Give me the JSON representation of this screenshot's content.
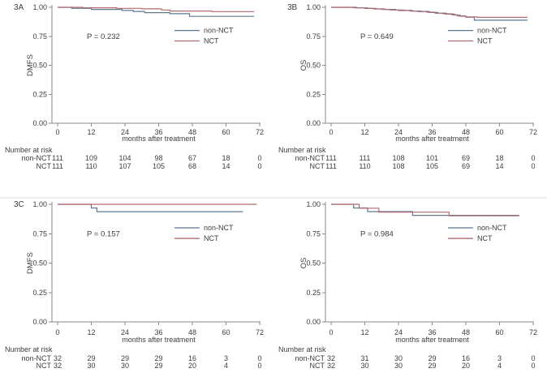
{
  "figure": {
    "background": "#ffffff",
    "separator_color": "#e3d9d9"
  },
  "shared": {
    "xlabel": "months after treatment",
    "risk_title": "Number at risk",
    "legend": [
      "non-NCT",
      "NCT"
    ],
    "colors": {
      "non_nct": "#5e7890",
      "nct": "#b36a6e",
      "axis": "#8a8a8a",
      "text": "#3c3c3c"
    }
  },
  "chart_data": [
    {
      "type": "line",
      "step": true,
      "label": "3A",
      "ylabel": "DMFS",
      "pvalue": "P = 0.232",
      "xlabel": "months after treatment",
      "xlim": [
        0,
        72
      ],
      "ylim": [
        0,
        1
      ],
      "xticks": [
        0,
        12,
        24,
        36,
        48,
        60,
        72
      ],
      "yticks": [
        "0.00",
        "0.25",
        "0.50",
        "0.75",
        "1.00"
      ],
      "legend_position": "right-upper",
      "grid": false,
      "series": [
        {
          "name": "non-NCT",
          "color": "#5e7890",
          "points": [
            [
              0,
              1.0
            ],
            [
              5,
              0.991
            ],
            [
              12,
              0.982
            ],
            [
              23,
              0.973
            ],
            [
              27,
              0.964
            ],
            [
              31,
              0.954
            ],
            [
              40,
              0.945
            ],
            [
              47,
              0.922
            ],
            [
              70,
              0.922
            ]
          ]
        },
        {
          "name": "NCT",
          "color": "#b36a6e",
          "points": [
            [
              0,
              1.0
            ],
            [
              9,
              0.996
            ],
            [
              21,
              0.991
            ],
            [
              30,
              0.987
            ],
            [
              37,
              0.977
            ],
            [
              40,
              0.968
            ],
            [
              55,
              0.963
            ],
            [
              70,
              0.963
            ]
          ]
        }
      ],
      "number_at_risk": [
        {
          "name": "non-NCT",
          "values": [
            111,
            109,
            104,
            98,
            67,
            18,
            0
          ]
        },
        {
          "name": "NCT",
          "values": [
            111,
            110,
            107,
            105,
            68,
            14,
            0
          ]
        }
      ]
    },
    {
      "type": "line",
      "step": true,
      "label": "3B",
      "ylabel": "OS",
      "pvalue": "P = 0.649",
      "xlabel": "months after treatment",
      "xlim": [
        0,
        72
      ],
      "ylim": [
        0,
        1
      ],
      "xticks": [
        0,
        12,
        24,
        36,
        48,
        60,
        72
      ],
      "yticks": [
        "0.00",
        "0.25",
        "0.50",
        "0.75",
        "1.00"
      ],
      "legend_position": "right-upper",
      "grid": false,
      "series": [
        {
          "name": "non-NCT",
          "color": "#5e7890",
          "points": [
            [
              0,
              1.0
            ],
            [
              9,
              0.995
            ],
            [
              13,
              0.991
            ],
            [
              16,
              0.986
            ],
            [
              19,
              0.982
            ],
            [
              23,
              0.977
            ],
            [
              26,
              0.973
            ],
            [
              29,
              0.968
            ],
            [
              32,
              0.964
            ],
            [
              35,
              0.955
            ],
            [
              38,
              0.95
            ],
            [
              41,
              0.941
            ],
            [
              44,
              0.932
            ],
            [
              46,
              0.923
            ],
            [
              48,
              0.914
            ],
            [
              51,
              0.889
            ],
            [
              70,
              0.889
            ]
          ]
        },
        {
          "name": "NCT",
          "color": "#b36a6e",
          "points": [
            [
              0,
              1.0
            ],
            [
              8,
              0.995
            ],
            [
              12,
              0.99
            ],
            [
              15,
              0.986
            ],
            [
              18,
              0.981
            ],
            [
              21,
              0.977
            ],
            [
              24,
              0.972
            ],
            [
              28,
              0.967
            ],
            [
              31,
              0.963
            ],
            [
              34,
              0.958
            ],
            [
              37,
              0.949
            ],
            [
              40,
              0.944
            ],
            [
              43,
              0.935
            ],
            [
              45,
              0.926
            ],
            [
              48,
              0.917
            ],
            [
              52,
              0.913
            ],
            [
              70,
              0.913
            ]
          ]
        }
      ],
      "number_at_risk": [
        {
          "name": "non-NCT",
          "values": [
            111,
            111,
            108,
            101,
            69,
            18,
            0
          ]
        },
        {
          "name": "NCT",
          "values": [
            111,
            110,
            108,
            105,
            69,
            14,
            0
          ]
        }
      ]
    },
    {
      "type": "line",
      "step": true,
      "label": "3C",
      "ylabel": "DMFS",
      "pvalue": "P = 0.157",
      "xlabel": "months after treatment",
      "xlim": [
        0,
        72
      ],
      "ylim": [
        0,
        1
      ],
      "xticks": [
        0,
        12,
        24,
        36,
        48,
        60,
        72
      ],
      "yticks": [
        "0.00",
        "0.25",
        "0.50",
        "0.75",
        "1.00"
      ],
      "legend_position": "right-upper",
      "grid": false,
      "series": [
        {
          "name": "non-NCT",
          "color": "#5e7890",
          "points": [
            [
              0,
              1.0
            ],
            [
              12,
              0.969
            ],
            [
              14,
              0.937
            ],
            [
              66,
              0.937
            ]
          ]
        },
        {
          "name": "NCT",
          "color": "#b36a6e",
          "points": [
            [
              0,
              1.0
            ],
            [
              71,
              1.0
            ]
          ]
        }
      ],
      "number_at_risk": [
        {
          "name": "non-NCT",
          "values": [
            32,
            29,
            29,
            29,
            16,
            3,
            0
          ]
        },
        {
          "name": "NCT",
          "values": [
            32,
            30,
            30,
            29,
            20,
            4,
            0
          ]
        }
      ]
    },
    {
      "type": "line",
      "step": true,
      "label": "",
      "ylabel": "OS",
      "pvalue": "P = 0.984",
      "xlabel": "months after treatment",
      "xlim": [
        0,
        72
      ],
      "ylim": [
        0,
        1
      ],
      "xticks": [
        0,
        12,
        24,
        36,
        48,
        60,
        72
      ],
      "yticks": [
        "0.00",
        "0.25",
        "0.50",
        "0.75",
        "1.00"
      ],
      "legend_position": "right-upper",
      "grid": false,
      "series": [
        {
          "name": "non-NCT",
          "color": "#5e7890",
          "points": [
            [
              0,
              1.0
            ],
            [
              8,
              0.969
            ],
            [
              13,
              0.938
            ],
            [
              29,
              0.906
            ],
            [
              67,
              0.906
            ]
          ]
        },
        {
          "name": "NCT",
          "color": "#b36a6e",
          "points": [
            [
              0,
              1.0
            ],
            [
              10,
              0.967
            ],
            [
              17,
              0.933
            ],
            [
              42,
              0.903
            ],
            [
              67,
              0.903
            ]
          ]
        }
      ],
      "number_at_risk": [
        {
          "name": "non-NCT",
          "values": [
            32,
            31,
            30,
            29,
            16,
            3,
            0
          ]
        },
        {
          "name": "NCT",
          "values": [
            32,
            30,
            30,
            29,
            20,
            4,
            0
          ]
        }
      ]
    }
  ]
}
